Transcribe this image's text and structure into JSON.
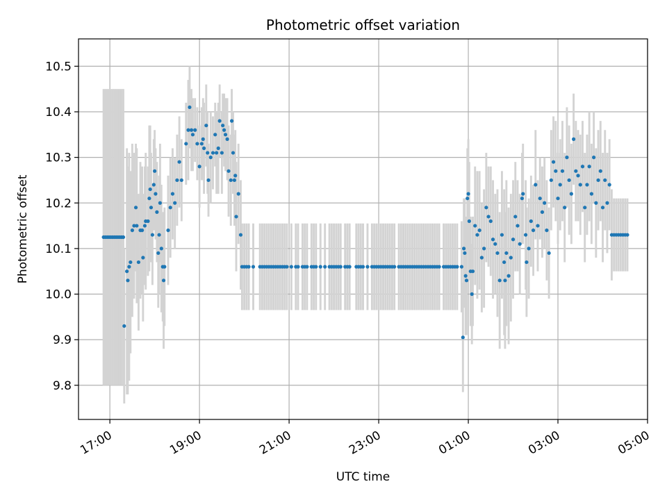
{
  "chart_data": {
    "type": "scatter",
    "title": "Photometric offset variation",
    "xlabel": "UTC time",
    "ylabel": "Photometric offset",
    "x_unit": "hours since 17:00 UTC (values above 7 wrap past midnight)",
    "xlim": [
      -0.7,
      12.0
    ],
    "ylim": [
      9.725,
      10.56
    ],
    "grid": true,
    "x_ticks": [
      {
        "value": 0,
        "label": "17:00"
      },
      {
        "value": 2,
        "label": "19:00"
      },
      {
        "value": 4,
        "label": "21:00"
      },
      {
        "value": 6,
        "label": "23:00"
      },
      {
        "value": 8,
        "label": "01:00"
      },
      {
        "value": 10,
        "label": "03:00"
      },
      {
        "value": 12,
        "label": "05:00"
      }
    ],
    "y_ticks": [
      {
        "value": 9.8,
        "label": "9.8"
      },
      {
        "value": 9.9,
        "label": "9.9"
      },
      {
        "value": 10.0,
        "label": "10.0"
      },
      {
        "value": 10.1,
        "label": "10.1"
      },
      {
        "value": 10.2,
        "label": "10.2"
      },
      {
        "value": 10.3,
        "label": "10.3"
      },
      {
        "value": 10.4,
        "label": "10.4"
      },
      {
        "value": 10.5,
        "label": "10.5"
      }
    ],
    "colors": {
      "points": "#1f77b4",
      "errorbars": "#d3d3d3",
      "grid": "#b0b0b0"
    },
    "points": [
      [
        -0.14,
        10.125,
        0.325
      ],
      [
        -0.1,
        10.125,
        0.325
      ],
      [
        -0.06,
        10.125,
        0.325
      ],
      [
        -0.02,
        10.125,
        0.325
      ],
      [
        0.02,
        10.125,
        0.325
      ],
      [
        0.06,
        10.125,
        0.325
      ],
      [
        0.1,
        10.125,
        0.325
      ],
      [
        0.14,
        10.125,
        0.325
      ],
      [
        0.18,
        10.125,
        0.325
      ],
      [
        0.22,
        10.125,
        0.325
      ],
      [
        0.26,
        10.125,
        0.325
      ],
      [
        0.3,
        10.125,
        0.325
      ],
      [
        0.32,
        9.93,
        0.17
      ],
      [
        0.38,
        10.05,
        0.27
      ],
      [
        0.4,
        10.03,
        0.25
      ],
      [
        0.43,
        10.06,
        0.25
      ],
      [
        0.46,
        10.07,
        0.2
      ],
      [
        0.5,
        10.14,
        0.19
      ],
      [
        0.54,
        10.15,
        0.16
      ],
      [
        0.58,
        10.19,
        0.14
      ],
      [
        0.6,
        10.15,
        0.17
      ],
      [
        0.64,
        10.07,
        0.15
      ],
      [
        0.68,
        10.14,
        0.15
      ],
      [
        0.72,
        10.14,
        0.14
      ],
      [
        0.74,
        10.08,
        0.14
      ],
      [
        0.78,
        10.15,
        0.13
      ],
      [
        0.8,
        10.16,
        0.15
      ],
      [
        0.85,
        10.16,
        0.12
      ],
      [
        0.88,
        10.21,
        0.16
      ],
      [
        0.9,
        10.23,
        0.14
      ],
      [
        0.92,
        10.19,
        0.12
      ],
      [
        0.95,
        10.13,
        0.11
      ],
      [
        0.98,
        10.24,
        0.1
      ],
      [
        1.0,
        10.27,
        0.09
      ],
      [
        1.02,
        10.22,
        0.1
      ],
      [
        1.05,
        10.18,
        0.11
      ],
      [
        1.08,
        10.09,
        0.12
      ],
      [
        1.1,
        10.13,
        0.13
      ],
      [
        1.12,
        10.2,
        0.13
      ],
      [
        1.15,
        10.1,
        0.14
      ],
      [
        1.18,
        10.06,
        0.12
      ],
      [
        1.2,
        10.03,
        0.15
      ],
      [
        1.22,
        10.06,
        0.13
      ],
      [
        1.3,
        10.14,
        0.12
      ],
      [
        1.35,
        10.19,
        0.11
      ],
      [
        1.4,
        10.22,
        0.1
      ],
      [
        1.45,
        10.2,
        0.1
      ],
      [
        1.5,
        10.25,
        0.1
      ],
      [
        1.55,
        10.29,
        0.1
      ],
      [
        1.6,
        10.25,
        0.09
      ],
      [
        1.7,
        10.33,
        0.09
      ],
      [
        1.75,
        10.36,
        0.11
      ],
      [
        1.78,
        10.41,
        0.09
      ],
      [
        1.82,
        10.36,
        0.09
      ],
      [
        1.85,
        10.35,
        0.08
      ],
      [
        1.9,
        10.36,
        0.07
      ],
      [
        1.95,
        10.33,
        0.08
      ],
      [
        2.0,
        10.28,
        0.09
      ],
      [
        2.05,
        10.33,
        0.08
      ],
      [
        2.08,
        10.34,
        0.09
      ],
      [
        2.1,
        10.32,
        0.1
      ],
      [
        2.15,
        10.37,
        0.09
      ],
      [
        2.18,
        10.31,
        0.09
      ],
      [
        2.2,
        10.25,
        0.08
      ],
      [
        2.25,
        10.3,
        0.1
      ],
      [
        2.3,
        10.31,
        0.08
      ],
      [
        2.35,
        10.35,
        0.07
      ],
      [
        2.38,
        10.31,
        0.09
      ],
      [
        2.42,
        10.32,
        0.1
      ],
      [
        2.45,
        10.38,
        0.08
      ],
      [
        2.5,
        10.31,
        0.09
      ],
      [
        2.52,
        10.37,
        0.07
      ],
      [
        2.55,
        10.36,
        0.08
      ],
      [
        2.58,
        10.35,
        0.08
      ],
      [
        2.62,
        10.34,
        0.09
      ],
      [
        2.65,
        10.27,
        0.1
      ],
      [
        2.7,
        10.25,
        0.1
      ],
      [
        2.72,
        10.38,
        0.07
      ],
      [
        2.75,
        10.31,
        0.09
      ],
      [
        2.78,
        10.25,
        0.1
      ],
      [
        2.8,
        10.26,
        0.1
      ],
      [
        2.82,
        10.17,
        0.12
      ],
      [
        2.87,
        10.22,
        0.11
      ],
      [
        2.92,
        10.13,
        0.12
      ],
      [
        2.95,
        10.06,
        0.095
      ],
      [
        3.0,
        10.06,
        0.095
      ],
      [
        3.05,
        10.06,
        0.095
      ],
      [
        3.1,
        10.06,
        0.095
      ],
      [
        3.2,
        10.06,
        0.095
      ],
      [
        3.35,
        10.06,
        0.095
      ],
      [
        3.4,
        10.06,
        0.095
      ],
      [
        3.45,
        10.06,
        0.095
      ],
      [
        3.5,
        10.06,
        0.095
      ],
      [
        3.55,
        10.06,
        0.095
      ],
      [
        3.6,
        10.06,
        0.095
      ],
      [
        3.65,
        10.06,
        0.095
      ],
      [
        3.7,
        10.06,
        0.095
      ],
      [
        3.75,
        10.06,
        0.095
      ],
      [
        3.8,
        10.06,
        0.095
      ],
      [
        3.85,
        10.06,
        0.095
      ],
      [
        3.9,
        10.06,
        0.095
      ],
      [
        3.95,
        10.06,
        0.095
      ],
      [
        4.05,
        10.06,
        0.095
      ],
      [
        4.15,
        10.06,
        0.095
      ],
      [
        4.2,
        10.06,
        0.095
      ],
      [
        4.3,
        10.06,
        0.095
      ],
      [
        4.35,
        10.06,
        0.095
      ],
      [
        4.4,
        10.06,
        0.095
      ],
      [
        4.5,
        10.06,
        0.095
      ],
      [
        4.55,
        10.06,
        0.095
      ],
      [
        4.6,
        10.06,
        0.095
      ],
      [
        4.7,
        10.06,
        0.095
      ],
      [
        4.8,
        10.06,
        0.095
      ],
      [
        4.9,
        10.06,
        0.095
      ],
      [
        4.95,
        10.06,
        0.095
      ],
      [
        5.0,
        10.06,
        0.095
      ],
      [
        5.05,
        10.06,
        0.095
      ],
      [
        5.1,
        10.06,
        0.095
      ],
      [
        5.15,
        10.06,
        0.095
      ],
      [
        5.25,
        10.06,
        0.095
      ],
      [
        5.3,
        10.06,
        0.095
      ],
      [
        5.35,
        10.06,
        0.095
      ],
      [
        5.5,
        10.06,
        0.095
      ],
      [
        5.55,
        10.06,
        0.095
      ],
      [
        5.6,
        10.06,
        0.095
      ],
      [
        5.65,
        10.06,
        0.095
      ],
      [
        5.75,
        10.06,
        0.095
      ],
      [
        5.85,
        10.06,
        0.095
      ],
      [
        5.9,
        10.06,
        0.095
      ],
      [
        5.95,
        10.06,
        0.095
      ],
      [
        6.0,
        10.06,
        0.095
      ],
      [
        6.05,
        10.06,
        0.095
      ],
      [
        6.1,
        10.06,
        0.095
      ],
      [
        6.15,
        10.06,
        0.095
      ],
      [
        6.2,
        10.06,
        0.095
      ],
      [
        6.25,
        10.06,
        0.095
      ],
      [
        6.3,
        10.06,
        0.095
      ],
      [
        6.35,
        10.06,
        0.095
      ],
      [
        6.45,
        10.06,
        0.095
      ],
      [
        6.5,
        10.06,
        0.095
      ],
      [
        6.55,
        10.06,
        0.095
      ],
      [
        6.6,
        10.06,
        0.095
      ],
      [
        6.65,
        10.06,
        0.095
      ],
      [
        6.7,
        10.06,
        0.095
      ],
      [
        6.75,
        10.06,
        0.095
      ],
      [
        6.8,
        10.06,
        0.095
      ],
      [
        6.85,
        10.06,
        0.095
      ],
      [
        6.9,
        10.06,
        0.095
      ],
      [
        6.95,
        10.06,
        0.095
      ],
      [
        7.0,
        10.06,
        0.095
      ],
      [
        7.05,
        10.06,
        0.095
      ],
      [
        7.1,
        10.06,
        0.095
      ],
      [
        7.15,
        10.06,
        0.095
      ],
      [
        7.2,
        10.06,
        0.095
      ],
      [
        7.25,
        10.06,
        0.095
      ],
      [
        7.3,
        10.06,
        0.095
      ],
      [
        7.35,
        10.06,
        0.095
      ],
      [
        7.45,
        10.06,
        0.095
      ],
      [
        7.5,
        10.06,
        0.095
      ],
      [
        7.55,
        10.06,
        0.095
      ],
      [
        7.6,
        10.06,
        0.095
      ],
      [
        7.65,
        10.06,
        0.095
      ],
      [
        7.7,
        10.06,
        0.095
      ],
      [
        7.75,
        10.06,
        0.095
      ],
      [
        7.85,
        10.06,
        0.1
      ],
      [
        7.88,
        9.905,
        0.12
      ],
      [
        7.9,
        10.1,
        0.11
      ],
      [
        7.92,
        10.09,
        0.12
      ],
      [
        7.94,
        10.04,
        0.13
      ],
      [
        7.96,
        10.03,
        0.12
      ],
      [
        7.98,
        10.21,
        0.11
      ],
      [
        8.0,
        10.22,
        0.12
      ],
      [
        8.02,
        10.16,
        0.13
      ],
      [
        8.05,
        10.05,
        0.12
      ],
      [
        8.08,
        10.0,
        0.11
      ],
      [
        8.1,
        10.05,
        0.12
      ],
      [
        8.15,
        10.15,
        0.13
      ],
      [
        8.2,
        10.13,
        0.14
      ],
      [
        8.25,
        10.14,
        0.13
      ],
      [
        8.3,
        10.08,
        0.12
      ],
      [
        8.35,
        10.1,
        0.13
      ],
      [
        8.4,
        10.19,
        0.12
      ],
      [
        8.45,
        10.17,
        0.11
      ],
      [
        8.5,
        10.16,
        0.12
      ],
      [
        8.55,
        10.12,
        0.13
      ],
      [
        8.6,
        10.11,
        0.11
      ],
      [
        8.65,
        10.09,
        0.14
      ],
      [
        8.7,
        10.03,
        0.15
      ],
      [
        8.75,
        10.13,
        0.14
      ],
      [
        8.8,
        10.07,
        0.16
      ],
      [
        8.82,
        10.03,
        0.15
      ],
      [
        8.85,
        10.09,
        0.16
      ],
      [
        8.9,
        10.04,
        0.15
      ],
      [
        8.95,
        10.08,
        0.14
      ],
      [
        9.0,
        10.12,
        0.13
      ],
      [
        9.05,
        10.17,
        0.12
      ],
      [
        9.1,
        10.15,
        0.1
      ],
      [
        9.15,
        10.11,
        0.11
      ],
      [
        9.2,
        10.21,
        0.1
      ],
      [
        9.22,
        10.22,
        0.11
      ],
      [
        9.28,
        10.13,
        0.12
      ],
      [
        9.3,
        10.07,
        0.12
      ],
      [
        9.35,
        10.1,
        0.11
      ],
      [
        9.4,
        10.16,
        0.1
      ],
      [
        9.45,
        10.14,
        0.1
      ],
      [
        9.5,
        10.24,
        0.12
      ],
      [
        9.55,
        10.15,
        0.1
      ],
      [
        9.6,
        10.21,
        0.09
      ],
      [
        9.65,
        10.18,
        0.1
      ],
      [
        9.7,
        10.2,
        0.1
      ],
      [
        9.75,
        10.14,
        0.11
      ],
      [
        9.8,
        10.09,
        0.1
      ],
      [
        9.85,
        10.25,
        0.11
      ],
      [
        9.9,
        10.29,
        0.1
      ],
      [
        9.95,
        10.27,
        0.11
      ],
      [
        10.0,
        10.21,
        0.1
      ],
      [
        10.05,
        10.24,
        0.1
      ],
      [
        10.1,
        10.27,
        0.11
      ],
      [
        10.15,
        10.19,
        0.12
      ],
      [
        10.2,
        10.3,
        0.11
      ],
      [
        10.25,
        10.25,
        0.12
      ],
      [
        10.3,
        10.22,
        0.11
      ],
      [
        10.35,
        10.34,
        0.1
      ],
      [
        10.4,
        10.27,
        0.11
      ],
      [
        10.45,
        10.26,
        0.1
      ],
      [
        10.5,
        10.24,
        0.11
      ],
      [
        10.55,
        10.28,
        0.1
      ],
      [
        10.6,
        10.19,
        0.12
      ],
      [
        10.65,
        10.24,
        0.11
      ],
      [
        10.7,
        10.28,
        0.12
      ],
      [
        10.75,
        10.22,
        0.11
      ],
      [
        10.8,
        10.3,
        0.1
      ],
      [
        10.85,
        10.2,
        0.12
      ],
      [
        10.9,
        10.25,
        0.11
      ],
      [
        10.95,
        10.27,
        0.11
      ],
      [
        11.0,
        10.19,
        0.12
      ],
      [
        11.05,
        10.25,
        0.11
      ],
      [
        11.1,
        10.2,
        0.11
      ],
      [
        11.15,
        10.24,
        0.1
      ],
      [
        11.2,
        10.13,
        0.1
      ],
      [
        11.25,
        10.13,
        0.08
      ],
      [
        11.3,
        10.13,
        0.08
      ],
      [
        11.35,
        10.13,
        0.08
      ],
      [
        11.4,
        10.13,
        0.08
      ],
      [
        11.45,
        10.13,
        0.08
      ],
      [
        11.5,
        10.13,
        0.08
      ],
      [
        11.55,
        10.13,
        0.08
      ]
    ]
  }
}
